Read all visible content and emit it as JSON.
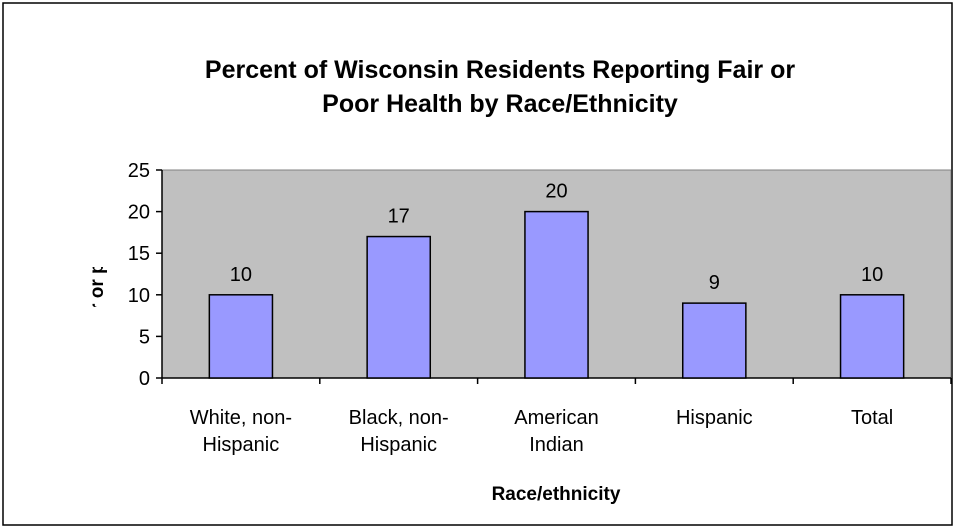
{
  "chart_data": {
    "type": "bar",
    "title": "Percent of Wisconsin Residents Reporting Fair or\nPoor Health by Race/Ethnicity",
    "x_label": "Race/ethnicity",
    "y_label": "% in fair or poor health",
    "categories": [
      "White, non-\nHispanic",
      "Black, non-\nHispanic",
      "American\nIndian",
      "Hispanic",
      "Total"
    ],
    "values": [
      10,
      17,
      20,
      9,
      10
    ],
    "color": "#9999ff",
    "ylim": [
      0,
      25
    ],
    "yticks": [
      0,
      5,
      10,
      15,
      20,
      25
    ],
    "grid": false
  }
}
